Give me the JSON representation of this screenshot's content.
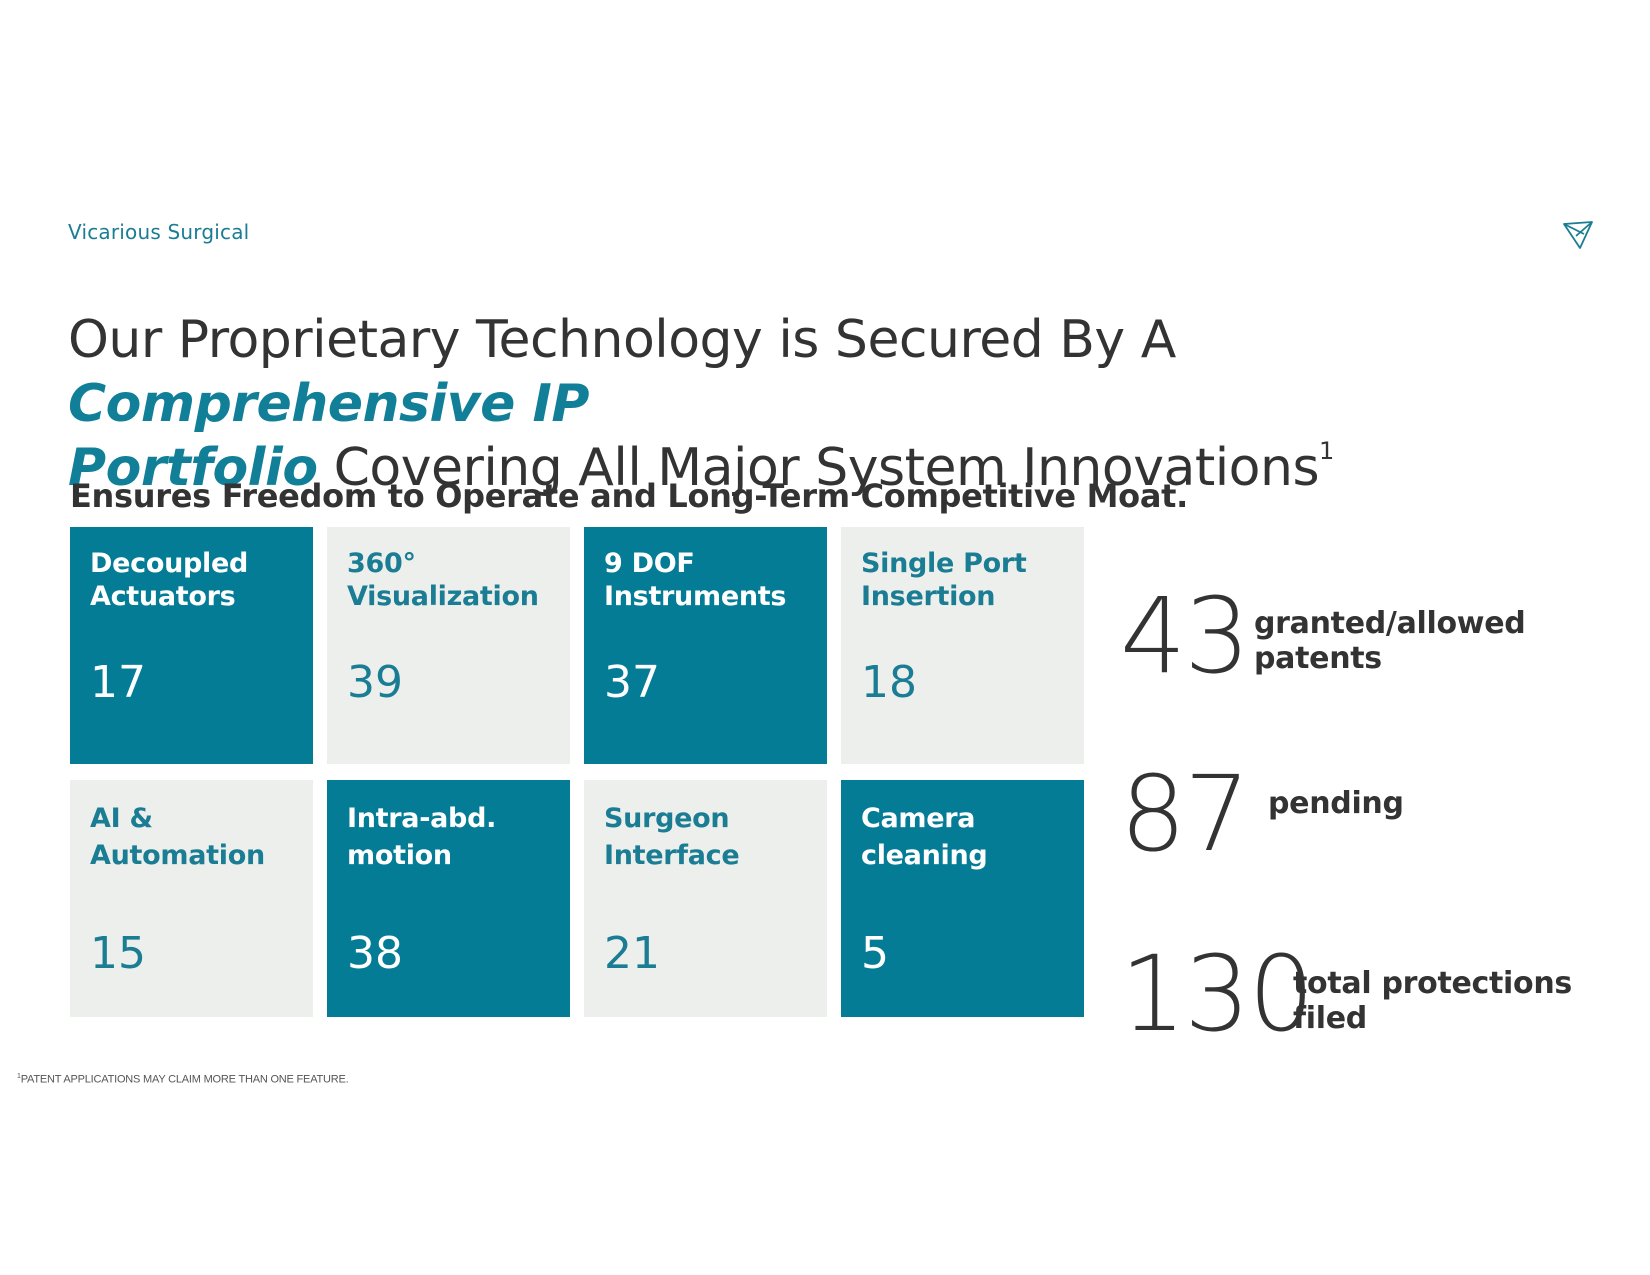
{
  "header": {
    "brand": "Vicarious Surgical",
    "logo_icon": "vicarious-logo-icon"
  },
  "title": {
    "part1": "Our Proprietary Technology is Secured By A ",
    "highlight1": "Comprehensive IP",
    "highlight2": "Portfolio",
    "part2": " Covering All Major System Innovations",
    "footnote_marker": "1"
  },
  "subtitle": "Ensures Freedom to Operate and Long-Term Competitive Moat.",
  "colors": {
    "accent": "#047c96",
    "tile_light": "#edefed",
    "text_dark": "#333333"
  },
  "tiles": [
    {
      "label": "Decoupled Actuators",
      "count": "17",
      "style": "dark"
    },
    {
      "label": "360° Visualization",
      "count": "39",
      "style": "light"
    },
    {
      "label": "9 DOF Instruments",
      "count": "37",
      "style": "dark"
    },
    {
      "label": "Single Port Insertion",
      "count": "18",
      "style": "light"
    },
    {
      "label": "AI & Automation",
      "count": "15",
      "style": "light"
    },
    {
      "label": "Intra-abd. motion",
      "count": "38",
      "style": "dark"
    },
    {
      "label": "Surgeon Interface",
      "count": "21",
      "style": "light"
    },
    {
      "label": "Camera cleaning",
      "count": "5",
      "style": "dark"
    }
  ],
  "stats": [
    {
      "number": "43",
      "label": "granted/allowed patents"
    },
    {
      "number": "87",
      "label": "pending"
    },
    {
      "number": "130",
      "label": "total protections filed"
    }
  ],
  "footnote": {
    "marker": "1",
    "text": "PATENT APPLICATIONS MAY CLAIM MORE THAN ONE FEATURE."
  }
}
